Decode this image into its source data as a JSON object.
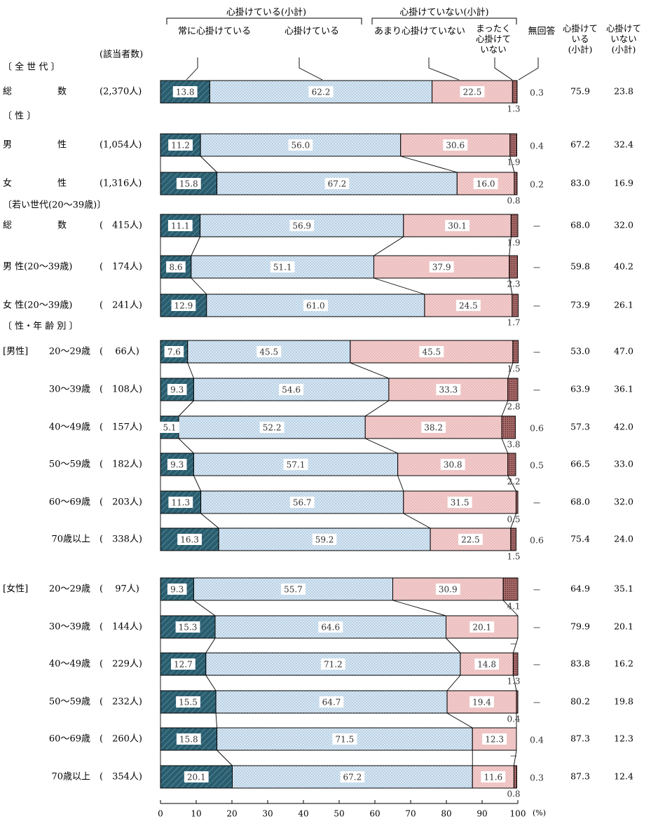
{
  "chart_data": {
    "type": "bar",
    "orientation": "horizontal",
    "stacked": true,
    "group_headers": [
      {
        "label": "心掛けている(小計)",
        "covers": [
          "常に心掛けている",
          "心掛けている"
        ]
      },
      {
        "label": "心掛けていない(小計)",
        "covers": [
          "あまり心掛けていない",
          "まったく心掛けていない"
        ]
      }
    ],
    "series_labels": [
      "常に心掛けている",
      "心掛けている",
      "あまり心掛けていない",
      "まったく\n心掛けて\nいない"
    ],
    "no_answer_label": "無回答",
    "subtotal_labels": [
      "心掛けて\nいる\n(小計)",
      "心掛けて\nいない\n(小計)"
    ],
    "respondents_header": "(該当者数)",
    "colors": {
      "always": "#2a5d6e",
      "mindful": "#cfe2f0",
      "rarely": "#f2c4c4",
      "never": "#8a4a4a",
      "border": "#000000"
    },
    "x_axis": {
      "min": 0,
      "max": 100,
      "ticks": [
        "0",
        "10",
        "20",
        "30",
        "40",
        "50",
        "60",
        "70",
        "80",
        "90",
        "100"
      ],
      "unit": "(%)"
    },
    "sections": [
      {
        "label": "〔 全 世 代 〕"
      },
      {
        "label": "〔 性 〕"
      },
      {
        "label": "〔若い世代(20～39歳)〕"
      },
      {
        "label": "〔 性・年 齢 別 〕"
      }
    ],
    "rows": [
      {
        "group": "",
        "label": "総　　　　　数",
        "n": "(2,370人)",
        "values": [
          13.8,
          62.2,
          22.5,
          1.3
        ],
        "no_answer": "0.3",
        "yes_subtotal": "75.9",
        "no_subtotal": "23.8",
        "labels": [
          "13.8",
          "62.2",
          "22.5",
          "1.3"
        ]
      },
      {
        "group": "",
        "label": "男　　　　　性",
        "n": "(1,054人)",
        "values": [
          11.2,
          56.0,
          30.6,
          1.9
        ],
        "no_answer": "0.4",
        "yes_subtotal": "67.2",
        "no_subtotal": "32.4",
        "labels": [
          "11.2",
          "56.0",
          "30.6",
          "1.9"
        ]
      },
      {
        "group": "",
        "label": "女　　　　　性",
        "n": "(1,316人)",
        "values": [
          15.8,
          67.2,
          16.0,
          0.8
        ],
        "no_answer": "0.2",
        "yes_subtotal": "83.0",
        "no_subtotal": "16.9",
        "labels": [
          "15.8",
          "67.2",
          "16.0",
          "0.8"
        ]
      },
      {
        "group": "",
        "label": "総　　　　　数",
        "n": "(　415人)",
        "values": [
          11.1,
          56.9,
          30.1,
          1.9
        ],
        "no_answer": "－",
        "yes_subtotal": "68.0",
        "no_subtotal": "32.0",
        "labels": [
          "11.1",
          "56.9",
          "30.1",
          "1.9"
        ]
      },
      {
        "group": "",
        "label": "男 性(20～39歳)",
        "n": "(　174人)",
        "values": [
          8.6,
          51.1,
          37.9,
          2.3
        ],
        "no_answer": "－",
        "yes_subtotal": "59.8",
        "no_subtotal": "40.2",
        "labels": [
          "8.6",
          "51.1",
          "37.9",
          "2.3"
        ]
      },
      {
        "group": "",
        "label": "女 性(20～39歳)",
        "n": "(　241人)",
        "values": [
          12.9,
          61.0,
          24.5,
          1.7
        ],
        "no_answer": "－",
        "yes_subtotal": "73.9",
        "no_subtotal": "26.1",
        "labels": [
          "12.9",
          "61.0",
          "24.5",
          "1.7"
        ]
      },
      {
        "group": "[男性]",
        "label": "20～29歳",
        "n": "(　 66人)",
        "values": [
          7.6,
          45.5,
          45.5,
          1.5
        ],
        "no_answer": "－",
        "yes_subtotal": "53.0",
        "no_subtotal": "47.0",
        "labels": [
          "7.6",
          "45.5",
          "45.5",
          "1.5"
        ]
      },
      {
        "group": "",
        "label": "30～39歳",
        "n": "(　108人)",
        "values": [
          9.3,
          54.6,
          33.3,
          2.8
        ],
        "no_answer": "－",
        "yes_subtotal": "63.9",
        "no_subtotal": "36.1",
        "labels": [
          "9.3",
          "54.6",
          "33.3",
          "2.8"
        ]
      },
      {
        "group": "",
        "label": "40～49歳",
        "n": "(　157人)",
        "values": [
          5.1,
          52.2,
          38.2,
          3.8
        ],
        "no_answer": "0.6",
        "yes_subtotal": "57.3",
        "no_subtotal": "42.0",
        "labels": [
          "5.1",
          "52.2",
          "38.2",
          "3.8"
        ]
      },
      {
        "group": "",
        "label": "50～59歳",
        "n": "(　182人)",
        "values": [
          9.3,
          57.1,
          30.8,
          2.2
        ],
        "no_answer": "0.5",
        "yes_subtotal": "66.5",
        "no_subtotal": "33.0",
        "labels": [
          "9.3",
          "57.1",
          "30.8",
          "2.2"
        ]
      },
      {
        "group": "",
        "label": "60～69歳",
        "n": "(　203人)",
        "values": [
          11.3,
          56.7,
          31.5,
          0.5
        ],
        "no_answer": "－",
        "yes_subtotal": "68.0",
        "no_subtotal": "32.0",
        "labels": [
          "11.3",
          "56.7",
          "31.5",
          "0.5"
        ]
      },
      {
        "group": "",
        "label": "70歳以上",
        "n": "(　338人)",
        "values": [
          16.3,
          59.2,
          22.5,
          1.5
        ],
        "no_answer": "0.6",
        "yes_subtotal": "75.4",
        "no_subtotal": "24.0",
        "labels": [
          "16.3",
          "59.2",
          "22.5",
          "1.5"
        ]
      },
      {
        "group": "[女性]",
        "label": "20～29歳",
        "n": "(　 97人)",
        "values": [
          9.3,
          55.7,
          30.9,
          4.1
        ],
        "no_answer": "－",
        "yes_subtotal": "64.9",
        "no_subtotal": "35.1",
        "labels": [
          "9.3",
          "55.7",
          "30.9",
          "4.1"
        ]
      },
      {
        "group": "",
        "label": "30～39歳",
        "n": "(　144人)",
        "values": [
          15.3,
          64.6,
          20.1,
          0
        ],
        "no_answer": "－",
        "yes_subtotal": "79.9",
        "no_subtotal": "20.1",
        "labels": [
          "15.3",
          "64.6",
          "20.1",
          "－"
        ]
      },
      {
        "group": "",
        "label": "40～49歳",
        "n": "(　229人)",
        "values": [
          12.7,
          71.2,
          14.8,
          1.3
        ],
        "no_answer": "－",
        "yes_subtotal": "83.8",
        "no_subtotal": "16.2",
        "labels": [
          "12.7",
          "71.2",
          "14.8",
          "1.3"
        ]
      },
      {
        "group": "",
        "label": "50～59歳",
        "n": "(　232人)",
        "values": [
          15.5,
          64.7,
          19.4,
          0.4
        ],
        "no_answer": "－",
        "yes_subtotal": "80.2",
        "no_subtotal": "19.8",
        "labels": [
          "15.5",
          "64.7",
          "19.4",
          "0.4"
        ]
      },
      {
        "group": "",
        "label": "60～69歳",
        "n": "(　260人)",
        "values": [
          15.8,
          71.5,
          12.3,
          0
        ],
        "no_answer": "0.4",
        "yes_subtotal": "87.3",
        "no_subtotal": "12.3",
        "labels": [
          "15.8",
          "71.5",
          "12.3",
          "－"
        ]
      },
      {
        "group": "",
        "label": "70歳以上",
        "n": "(　354人)",
        "values": [
          20.1,
          67.2,
          11.6,
          0.8
        ],
        "no_answer": "0.3",
        "yes_subtotal": "87.3",
        "no_subtotal": "12.4",
        "labels": [
          "20.1",
          "67.2",
          "11.6",
          "0.8"
        ]
      }
    ]
  }
}
